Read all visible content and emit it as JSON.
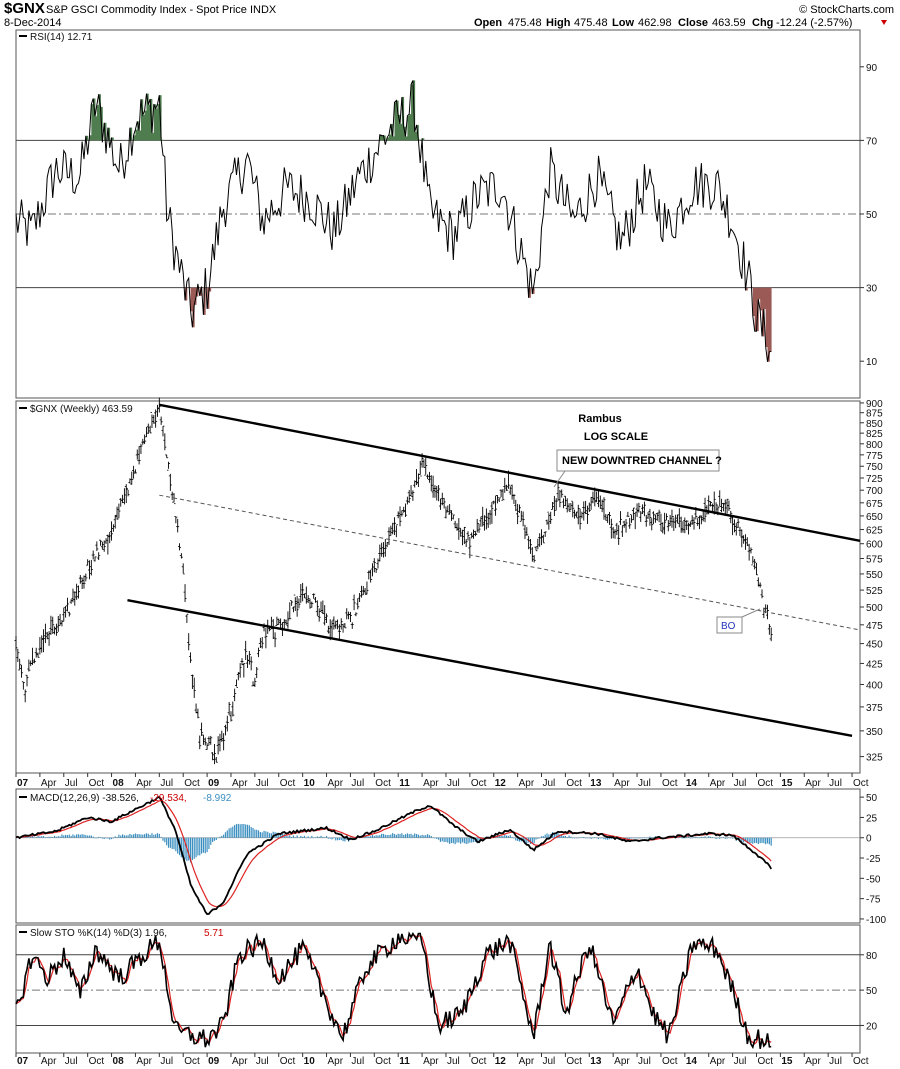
{
  "header": {
    "symbol": "$GNX",
    "description": "S&P GSCI Commodity Index - Spot Price INDX",
    "date": "8-Dec-2014",
    "open_label": "Open",
    "open": "475.48",
    "high_label": "High",
    "high": "475.48",
    "low_label": "Low",
    "low": "462.98",
    "close_label": "Close",
    "close": "463.59",
    "chg_label": "Chg",
    "chg": "-12.24 (-2.57%)",
    "watermark": "© StockCharts.com"
  },
  "x_axis_labels": [
    "07",
    "Apr",
    "Jul",
    "Oct",
    "08",
    "Apr",
    "Jul",
    "Oct",
    "09",
    "Apr",
    "Jul",
    "Oct",
    "10",
    "Apr",
    "Jul",
    "Oct",
    "11",
    "Apr",
    "Jul",
    "Oct",
    "12",
    "Apr",
    "Jul",
    "Oct",
    "13",
    "Apr",
    "Jul",
    "Oct",
    "14",
    "Apr",
    "Jul",
    "Oct",
    "15",
    "Apr",
    "Jul",
    "Oct"
  ],
  "panels": {
    "rsi": {
      "label": "RSI(14) 12.71",
      "ticks": [
        "90",
        "70",
        "50",
        "30",
        "10"
      ]
    },
    "price": {
      "label": "$GNX (Weekly) 463.59",
      "ticks": [
        "900",
        "875",
        "850",
        "825",
        "800",
        "775",
        "750",
        "725",
        "700",
        "675",
        "650",
        "625",
        "600",
        "575",
        "550",
        "525",
        "500",
        "475",
        "450",
        "425",
        "400",
        "375",
        "350",
        "325"
      ]
    },
    "macd": {
      "label_main": "MACD(12,26,9) -38.526,",
      "label_signal": "-29.534,",
      "label_hist": "-8.992",
      "ticks": [
        "50",
        "25",
        "0",
        "-25",
        "-50",
        "-75",
        "-100"
      ]
    },
    "sto": {
      "label_main": "Slow STO %K(14) %D(3) 1.96,",
      "label_d": "5.71",
      "ticks": [
        "80",
        "50",
        "20"
      ]
    }
  },
  "annotations": {
    "author": "Rambus",
    "scale_note": "LOG SCALE",
    "callout": "NEW DOWNTRED CHANNEL ?",
    "bo_label": "BO"
  },
  "colors": {
    "overbought_fill": "#4f7d4f",
    "oversold_fill": "#9b5a55",
    "macd_hist": "#3b8fc0",
    "signal_line": "#dd2222",
    "line": "#000000",
    "chg_negative": "#cc0000"
  },
  "chart_data": {
    "type": "line",
    "timeframe": "weekly",
    "x_range": [
      "2007-01",
      "2015-11"
    ],
    "y_scale": "log",
    "price_ylim": [
      310,
      905
    ],
    "price_anchors": [
      {
        "x": "2007-01",
        "y": 450
      },
      {
        "x": "2007-02",
        "y": 395
      },
      {
        "x": "2007-04",
        "y": 450
      },
      {
        "x": "2007-07",
        "y": 480
      },
      {
        "x": "2007-10",
        "y": 560
      },
      {
        "x": "2008-01",
        "y": 620
      },
      {
        "x": "2008-03",
        "y": 700
      },
      {
        "x": "2008-05",
        "y": 800
      },
      {
        "x": "2008-07",
        "y": 895
      },
      {
        "x": "2008-08",
        "y": 760
      },
      {
        "x": "2008-10",
        "y": 560
      },
      {
        "x": "2008-11",
        "y": 410
      },
      {
        "x": "2008-12",
        "y": 350
      },
      {
        "x": "2009-02",
        "y": 325
      },
      {
        "x": "2009-04",
        "y": 370
      },
      {
        "x": "2009-06",
        "y": 440
      },
      {
        "x": "2009-07",
        "y": 400
      },
      {
        "x": "2009-08",
        "y": 465
      },
      {
        "x": "2009-10",
        "y": 470
      },
      {
        "x": "2010-01",
        "y": 520
      },
      {
        "x": "2010-03",
        "y": 500
      },
      {
        "x": "2010-05",
        "y": 465
      },
      {
        "x": "2010-07",
        "y": 480
      },
      {
        "x": "2010-09",
        "y": 530
      },
      {
        "x": "2010-12",
        "y": 610
      },
      {
        "x": "2011-03",
        "y": 700
      },
      {
        "x": "2011-04",
        "y": 760
      },
      {
        "x": "2011-06",
        "y": 690
      },
      {
        "x": "2011-08",
        "y": 640
      },
      {
        "x": "2011-10",
        "y": 600
      },
      {
        "x": "2012-01",
        "y": 670
      },
      {
        "x": "2012-03",
        "y": 710
      },
      {
        "x": "2012-06",
        "y": 570
      },
      {
        "x": "2012-09",
        "y": 690
      },
      {
        "x": "2012-12",
        "y": 650
      },
      {
        "x": "2013-02",
        "y": 690
      },
      {
        "x": "2013-04",
        "y": 620
      },
      {
        "x": "2013-07",
        "y": 660
      },
      {
        "x": "2013-10",
        "y": 640
      },
      {
        "x": "2014-01",
        "y": 635
      },
      {
        "x": "2014-04",
        "y": 665
      },
      {
        "x": "2014-06",
        "y": 675
      },
      {
        "x": "2014-08",
        "y": 620
      },
      {
        "x": "2014-10",
        "y": 560
      },
      {
        "x": "2014-11",
        "y": 500
      },
      {
        "x": "2014-12",
        "y": 463.59
      }
    ],
    "rsi_anchors": [
      {
        "x": "2007-01",
        "y": 48
      },
      {
        "x": "2007-03",
        "y": 45
      },
      {
        "x": "2007-06",
        "y": 62
      },
      {
        "x": "2007-09",
        "y": 60
      },
      {
        "x": "2007-11",
        "y": 80
      },
      {
        "x": "2008-02",
        "y": 62
      },
      {
        "x": "2008-04",
        "y": 76
      },
      {
        "x": "2008-07",
        "y": 80
      },
      {
        "x": "2008-08",
        "y": 50
      },
      {
        "x": "2008-09",
        "y": 40
      },
      {
        "x": "2008-11",
        "y": 23
      },
      {
        "x": "2009-01",
        "y": 30
      },
      {
        "x": "2009-03",
        "y": 52
      },
      {
        "x": "2009-06",
        "y": 65
      },
      {
        "x": "2009-08",
        "y": 48
      },
      {
        "x": "2009-11",
        "y": 57
      },
      {
        "x": "2010-02",
        "y": 54
      },
      {
        "x": "2010-05",
        "y": 45
      },
      {
        "x": "2010-08",
        "y": 60
      },
      {
        "x": "2010-12",
        "y": 73
      },
      {
        "x": "2011-03",
        "y": 80
      },
      {
        "x": "2011-05",
        "y": 50
      },
      {
        "x": "2011-08",
        "y": 44
      },
      {
        "x": "2011-11",
        "y": 55
      },
      {
        "x": "2012-02",
        "y": 58
      },
      {
        "x": "2012-06",
        "y": 28
      },
      {
        "x": "2012-08",
        "y": 62
      },
      {
        "x": "2012-11",
        "y": 48
      },
      {
        "x": "2013-02",
        "y": 60
      },
      {
        "x": "2013-05",
        "y": 42
      },
      {
        "x": "2013-08",
        "y": 58
      },
      {
        "x": "2013-11",
        "y": 46
      },
      {
        "x": "2014-02",
        "y": 58
      },
      {
        "x": "2014-05",
        "y": 58
      },
      {
        "x": "2014-07",
        "y": 48
      },
      {
        "x": "2014-09",
        "y": 32
      },
      {
        "x": "2014-10",
        "y": 22
      },
      {
        "x": "2014-12",
        "y": 12.71
      }
    ],
    "macd": {
      "last_macd": -38.526,
      "last_signal": -29.534,
      "last_hist": -8.992,
      "ylim": [
        -105,
        60
      ],
      "macd_anchors": [
        {
          "x": "2007-01",
          "y": 0
        },
        {
          "x": "2007-06",
          "y": 8
        },
        {
          "x": "2007-10",
          "y": 25
        },
        {
          "x": "2008-01",
          "y": 20
        },
        {
          "x": "2008-04",
          "y": 35
        },
        {
          "x": "2008-07",
          "y": 50
        },
        {
          "x": "2008-09",
          "y": 10
        },
        {
          "x": "2008-11",
          "y": -60
        },
        {
          "x": "2009-01",
          "y": -95
        },
        {
          "x": "2009-03",
          "y": -80
        },
        {
          "x": "2009-06",
          "y": -20
        },
        {
          "x": "2009-10",
          "y": 5
        },
        {
          "x": "2010-04",
          "y": 12
        },
        {
          "x": "2010-07",
          "y": -2
        },
        {
          "x": "2010-10",
          "y": 8
        },
        {
          "x": "2011-03",
          "y": 32
        },
        {
          "x": "2011-05",
          "y": 40
        },
        {
          "x": "2011-08",
          "y": 15
        },
        {
          "x": "2011-11",
          "y": -5
        },
        {
          "x": "2012-03",
          "y": 10
        },
        {
          "x": "2012-06",
          "y": -15
        },
        {
          "x": "2012-09",
          "y": 8
        },
        {
          "x": "2013-02",
          "y": 5
        },
        {
          "x": "2013-06",
          "y": -5
        },
        {
          "x": "2013-10",
          "y": 0
        },
        {
          "x": "2014-04",
          "y": 5
        },
        {
          "x": "2014-07",
          "y": 3
        },
        {
          "x": "2014-10",
          "y": -20
        },
        {
          "x": "2014-12",
          "y": -38.526
        }
      ]
    },
    "stochastic": {
      "last_k": 1.96,
      "last_d": 5.71,
      "ylim": [
        0,
        100
      ],
      "k_anchors": [
        {
          "x": "2007-01",
          "y": 30
        },
        {
          "x": "2007-03",
          "y": 80
        },
        {
          "x": "2007-05",
          "y": 60
        },
        {
          "x": "2007-07",
          "y": 80
        },
        {
          "x": "2007-09",
          "y": 45
        },
        {
          "x": "2007-11",
          "y": 85
        },
        {
          "x": "2008-02",
          "y": 60
        },
        {
          "x": "2008-05",
          "y": 80
        },
        {
          "x": "2008-07",
          "y": 92
        },
        {
          "x": "2008-09",
          "y": 15
        },
        {
          "x": "2009-01",
          "y": 8
        },
        {
          "x": "2009-03",
          "y": 20
        },
        {
          "x": "2009-05",
          "y": 80
        },
        {
          "x": "2009-08",
          "y": 90
        },
        {
          "x": "2009-10",
          "y": 60
        },
        {
          "x": "2010-01",
          "y": 85
        },
        {
          "x": "2010-04",
          "y": 40
        },
        {
          "x": "2010-06",
          "y": 10
        },
        {
          "x": "2010-09",
          "y": 70
        },
        {
          "x": "2011-01",
          "y": 95
        },
        {
          "x": "2011-04",
          "y": 92
        },
        {
          "x": "2011-06",
          "y": 20
        },
        {
          "x": "2011-09",
          "y": 30
        },
        {
          "x": "2011-12",
          "y": 80
        },
        {
          "x": "2012-03",
          "y": 92
        },
        {
          "x": "2012-06",
          "y": 10
        },
        {
          "x": "2012-08",
          "y": 90
        },
        {
          "x": "2012-10",
          "y": 30
        },
        {
          "x": "2013-01",
          "y": 90
        },
        {
          "x": "2013-04",
          "y": 20
        },
        {
          "x": "2013-07",
          "y": 70
        },
        {
          "x": "2013-09",
          "y": 30
        },
        {
          "x": "2013-11",
          "y": 10
        },
        {
          "x": "2014-02",
          "y": 90
        },
        {
          "x": "2014-05",
          "y": 85
        },
        {
          "x": "2014-07",
          "y": 50
        },
        {
          "x": "2014-09",
          "y": 10
        },
        {
          "x": "2014-11",
          "y": 8
        },
        {
          "x": "2014-12",
          "y": 1.96
        }
      ]
    },
    "channel_lines": [
      {
        "name": "upper",
        "from": {
          "x": "2008-07",
          "y": 895
        },
        "to": {
          "x": "2015-11",
          "y": 605
        }
      },
      {
        "name": "middle",
        "from": {
          "x": "2008-07",
          "y": 690
        },
        "to": {
          "x": "2015-11",
          "y": 468
        }
      },
      {
        "name": "lower",
        "from": {
          "x": "2008-03",
          "y": 510
        },
        "to": {
          "x": "2015-10",
          "y": 345
        }
      }
    ]
  }
}
